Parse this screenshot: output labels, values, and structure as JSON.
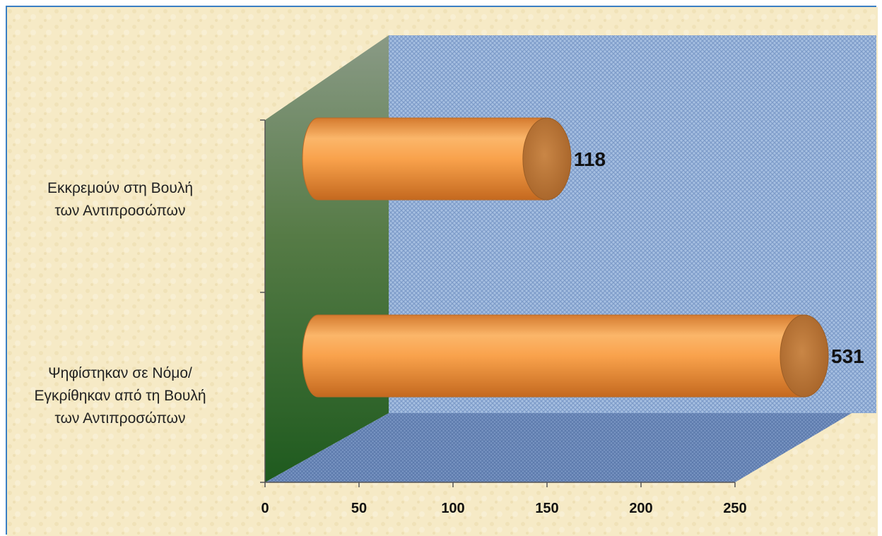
{
  "chart_data": {
    "type": "bar",
    "orientation": "horizontal",
    "style": "3d-cylinder",
    "categories": [
      "Εκκρεμούν στη Βουλή των Αντιπροσώπων",
      "Ψηφίστηκαν σε Νόμο/ Εγκρίθηκαν από τη Βουλή των Αντιπροσώπων"
    ],
    "category_lines": [
      [
        "Εκκρεμούν στη Βουλή",
        "των Αντιπροσώπων"
      ],
      [
        "Ψηφίστηκαν σε Νόμο/",
        "Εγκρίθηκαν από τη Βουλή",
        "των Αντιπροσώπων"
      ]
    ],
    "values": [
      118,
      531
    ],
    "value_labels": [
      "118",
      "531"
    ],
    "xlim": [
      0,
      250
    ],
    "xticks": [
      "0",
      "50",
      "100",
      "150",
      "200",
      "250"
    ],
    "legend": "none",
    "grid": false,
    "colors": {
      "bar": "#f7a04a",
      "bar_end": "#b8753a",
      "wall": "#9ab4d8",
      "side_wall": "#2f6a2a",
      "floor": "#6f8fc0",
      "background": "#f5e9c4"
    }
  }
}
